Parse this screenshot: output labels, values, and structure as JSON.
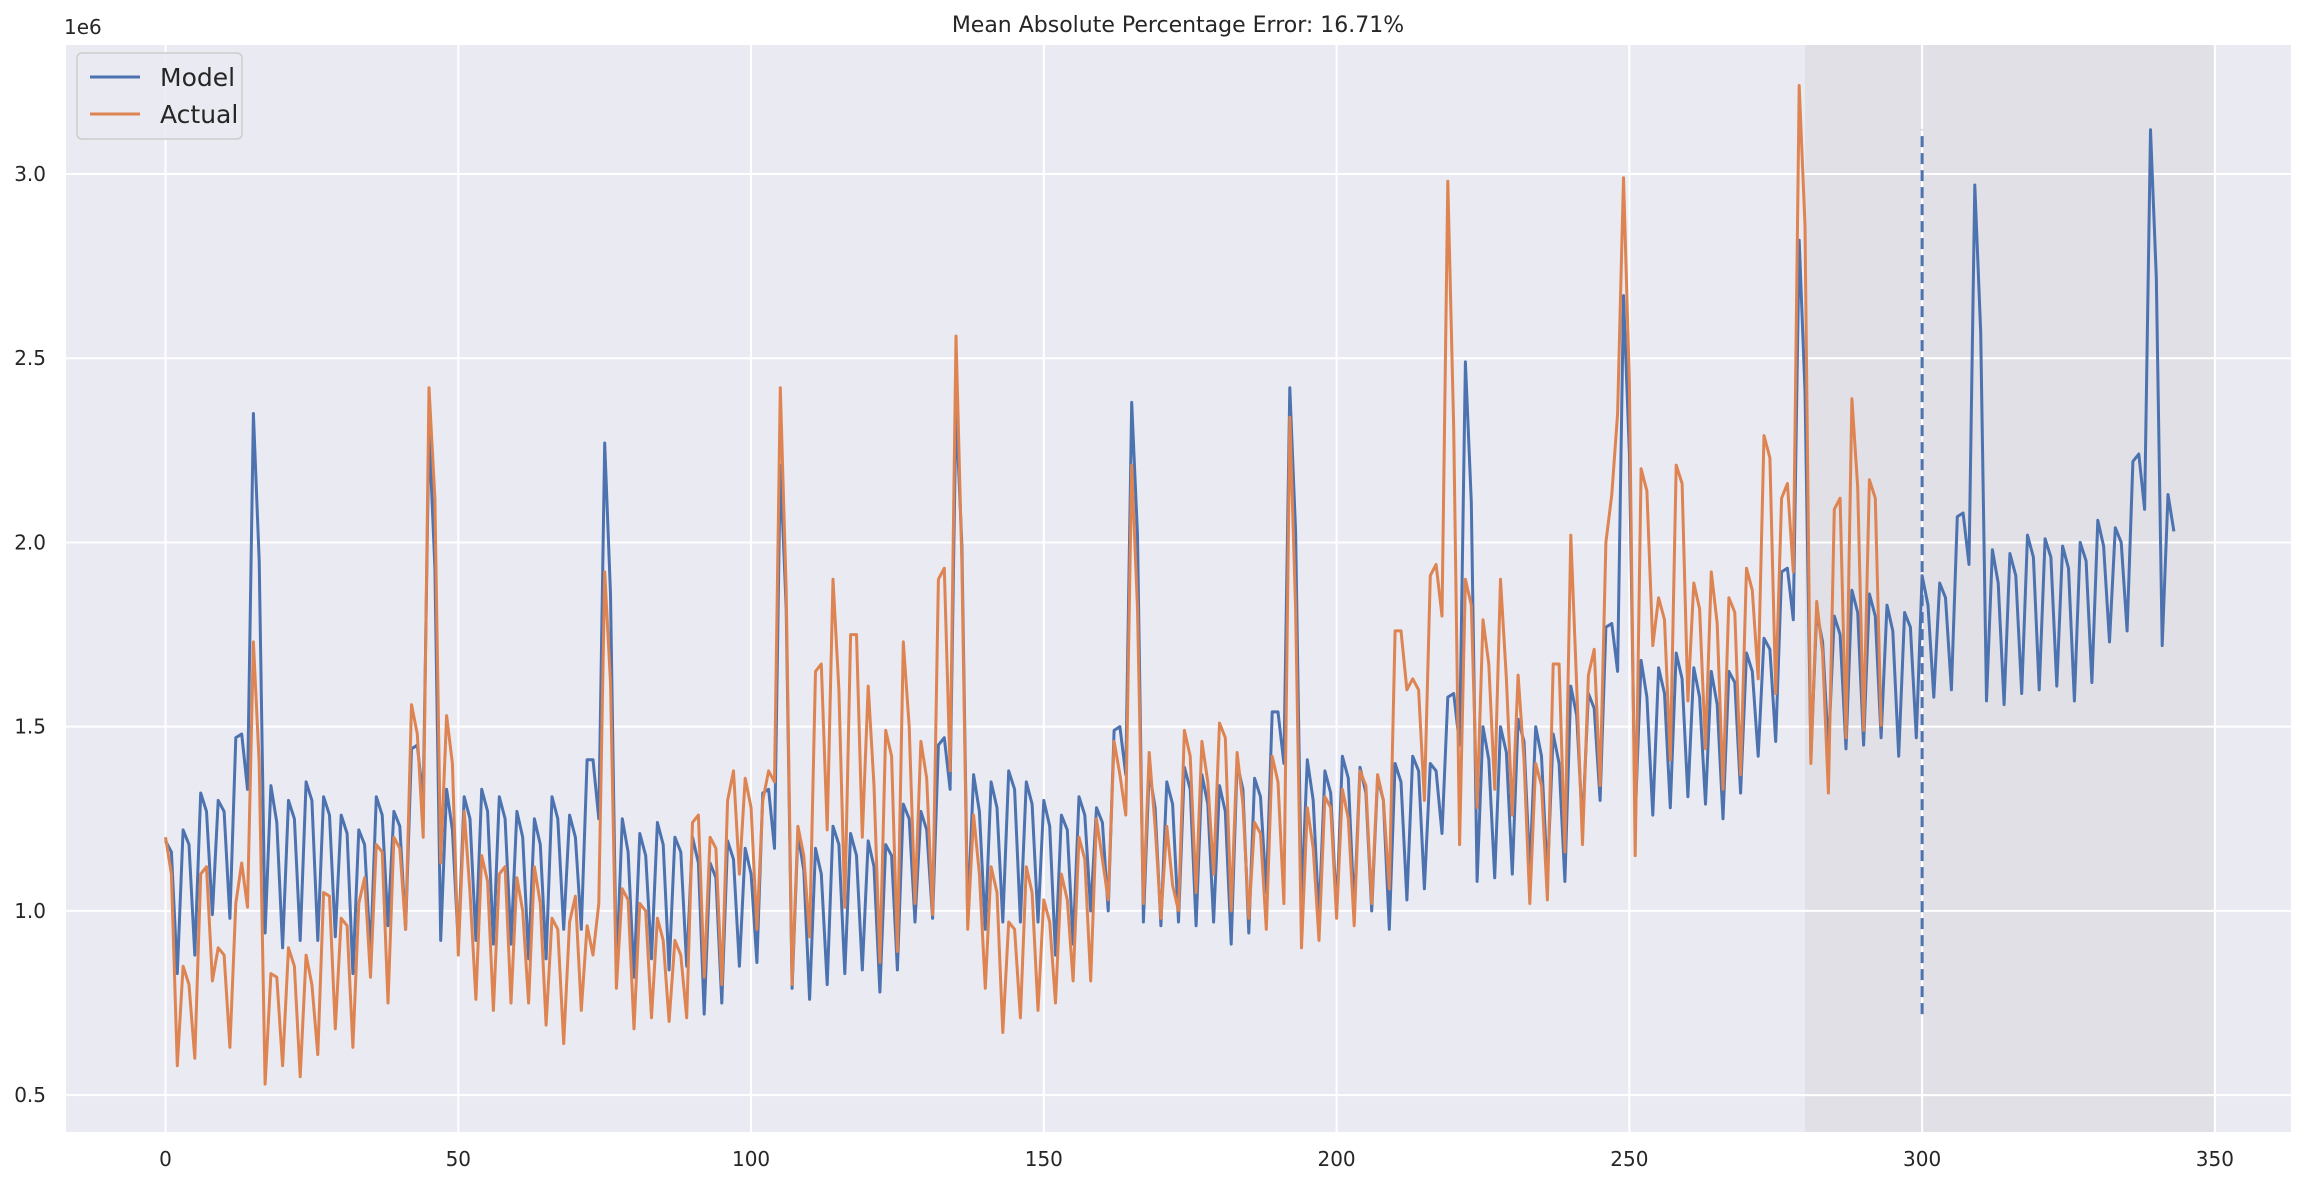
{
  "chart_data": {
    "type": "line",
    "title": "Mean Absolute Percentage Error: 16.71%",
    "y_offset_label": "1e6",
    "xlabel": "",
    "ylabel": "",
    "xlim": [
      -17,
      363
    ],
    "ylim": [
      0.4,
      3.35
    ],
    "x_ticks": [
      0,
      50,
      100,
      150,
      200,
      250,
      300,
      350
    ],
    "x_tick_labels": [
      "0",
      "50",
      "100",
      "150",
      "200",
      "250",
      "300",
      "350"
    ],
    "y_ticks": [
      0.5,
      1.0,
      1.5,
      2.0,
      2.5,
      3.0
    ],
    "y_tick_labels": [
      "0.5",
      "1.0",
      "1.5",
      "2.0",
      "2.5",
      "3.0"
    ],
    "grid": true,
    "legend_position": "top-left",
    "background": "#eaeaf2",
    "shaded_region": {
      "x": [
        280,
        350
      ],
      "color": "#e0e0e6"
    },
    "forecast_marker": {
      "x": 300,
      "y": [
        0.72,
        3.12
      ],
      "style": "dashed",
      "color": "#4c72b0"
    },
    "series": [
      {
        "name": "Model",
        "color": "#4c72b0",
        "values": [
          1.19,
          1.16,
          0.83,
          1.22,
          1.18,
          0.88,
          1.32,
          1.27,
          0.99,
          1.3,
          1.27,
          0.98,
          1.47,
          1.48,
          1.33,
          2.35,
          1.95,
          0.94,
          1.34,
          1.24,
          0.9,
          1.3,
          1.25,
          0.92,
          1.35,
          1.3,
          0.92,
          1.31,
          1.26,
          0.93,
          1.26,
          1.21,
          0.83,
          1.22,
          1.18,
          0.88,
          1.31,
          1.26,
          0.96,
          1.27,
          1.23,
          0.95,
          1.44,
          1.45,
          1.3,
          2.31,
          1.93,
          0.92,
          1.33,
          1.22,
          0.91,
          1.31,
          1.25,
          0.92,
          1.33,
          1.27,
          0.91,
          1.31,
          1.25,
          0.91,
          1.27,
          1.2,
          0.87,
          1.25,
          1.18,
          0.87,
          1.31,
          1.25,
          0.95,
          1.26,
          1.2,
          0.95,
          1.41,
          1.41,
          1.25,
          2.27,
          1.86,
          0.83,
          1.25,
          1.16,
          0.82,
          1.21,
          1.15,
          0.87,
          1.24,
          1.18,
          0.84,
          1.2,
          1.16,
          0.85,
          1.2,
          1.13,
          0.72,
          1.13,
          1.09,
          0.75,
          1.19,
          1.14,
          0.85,
          1.17,
          1.1,
          0.86,
          1.32,
          1.33,
          1.17,
          2.21,
          1.82,
          0.79,
          1.21,
          1.11,
          0.76,
          1.17,
          1.1,
          0.8,
          1.23,
          1.18,
          0.83,
          1.21,
          1.15,
          0.84,
          1.19,
          1.12,
          0.78,
          1.18,
          1.15,
          0.84,
          1.29,
          1.25,
          0.97,
          1.27,
          1.22,
          0.98,
          1.45,
          1.47,
          1.33,
          2.37,
          1.99,
          0.98,
          1.37,
          1.27,
          0.95,
          1.35,
          1.28,
          0.97,
          1.38,
          1.33,
          0.97,
          1.35,
          1.29,
          0.97,
          1.3,
          1.23,
          0.88,
          1.26,
          1.22,
          0.91,
          1.31,
          1.26,
          1.0,
          1.28,
          1.24,
          1.0,
          1.49,
          1.5,
          1.37,
          2.38,
          2.02,
          0.97,
          1.38,
          1.28,
          0.96,
          1.35,
          1.29,
          0.97,
          1.39,
          1.33,
          0.96,
          1.37,
          1.29,
          0.97,
          1.34,
          1.27,
          0.91,
          1.4,
          1.33,
          0.94,
          1.36,
          1.31,
          1.05,
          1.54,
          1.54,
          1.4,
          2.42,
          2.03,
          1.02,
          1.41,
          1.3,
          0.98,
          1.38,
          1.32,
          1.0,
          1.42,
          1.36,
          1.0,
          1.39,
          1.32,
          1.0,
          1.36,
          1.3,
          0.95,
          1.4,
          1.35,
          1.03,
          1.42,
          1.38,
          1.06,
          1.4,
          1.38,
          1.21,
          1.58,
          1.59,
          1.45,
          2.49,
          2.11,
          1.08,
          1.5,
          1.41,
          1.09,
          1.5,
          1.43,
          1.1,
          1.52,
          1.46,
          1.11,
          1.5,
          1.42,
          1.09,
          1.48,
          1.4,
          1.08,
          1.61,
          1.53,
          1.23,
          1.59,
          1.55,
          1.3,
          1.77,
          1.78,
          1.65,
          2.67,
          2.24,
          1.25,
          1.68,
          1.58,
          1.26,
          1.66,
          1.59,
          1.28,
          1.7,
          1.63,
          1.31,
          1.66,
          1.58,
          1.29,
          1.65,
          1.56,
          1.25,
          1.65,
          1.62,
          1.32,
          1.7,
          1.65,
          1.42,
          1.74,
          1.71,
          1.46,
          1.92,
          1.93,
          1.79,
          2.82,
          2.41,
          1.42,
          1.81,
          1.73,
          1.44,
          1.8,
          1.75,
          1.44,
          1.87,
          1.81,
          1.45,
          1.86,
          1.8,
          1.47,
          1.83,
          1.76,
          1.42,
          1.81,
          1.77,
          1.47,
          1.91,
          1.83,
          1.58,
          1.89,
          1.85,
          1.6,
          2.07,
          2.08,
          1.94,
          2.97,
          2.57,
          1.57,
          1.98,
          1.89,
          1.56,
          1.97,
          1.91,
          1.59,
          2.02,
          1.96,
          1.6,
          2.01,
          1.96,
          1.61,
          1.99,
          1.93,
          1.57,
          2.0,
          1.95,
          1.62,
          2.06,
          1.99,
          1.73,
          2.04,
          2.0,
          1.76,
          2.22,
          2.24,
          2.09,
          3.12,
          2.72,
          1.72,
          2.13,
          2.03
        ]
      },
      {
        "name": "Actual",
        "color": "#dd8452",
        "values": [
          1.2,
          1.1,
          0.58,
          0.85,
          0.8,
          0.6,
          1.1,
          1.12,
          0.81,
          0.9,
          0.88,
          0.63,
          1.02,
          1.13,
          1.01,
          1.73,
          1.4,
          0.53,
          0.83,
          0.82,
          0.58,
          0.9,
          0.85,
          0.55,
          0.88,
          0.8,
          0.61,
          1.05,
          1.04,
          0.68,
          0.98,
          0.96,
          0.63,
          1.02,
          1.09,
          0.82,
          1.18,
          1.16,
          0.75,
          1.2,
          1.17,
          0.95,
          1.56,
          1.48,
          1.2,
          2.42,
          2.12,
          1.13,
          1.53,
          1.4,
          0.88,
          1.27,
          1.05,
          0.76,
          1.15,
          1.08,
          0.73,
          1.1,
          1.12,
          0.75,
          1.09,
          1.0,
          0.75,
          1.12,
          1.02,
          0.69,
          0.98,
          0.95,
          0.64,
          0.97,
          1.04,
          0.73,
          0.96,
          0.88,
          1.02,
          1.92,
          1.62,
          0.79,
          1.06,
          1.03,
          0.68,
          1.02,
          1.0,
          0.71,
          0.98,
          0.92,
          0.7,
          0.92,
          0.88,
          0.71,
          1.24,
          1.26,
          0.82,
          1.2,
          1.17,
          0.8,
          1.3,
          1.38,
          1.1,
          1.36,
          1.28,
          0.95,
          1.3,
          1.38,
          1.35,
          2.42,
          1.87,
          0.8,
          1.23,
          1.15,
          0.93,
          1.65,
          1.67,
          1.22,
          1.9,
          1.6,
          1.01,
          1.75,
          1.75,
          1.2,
          1.61,
          1.34,
          0.86,
          1.49,
          1.42,
          0.89,
          1.73,
          1.5,
          1.02,
          1.46,
          1.36,
          0.99,
          1.9,
          1.93,
          1.38,
          2.56,
          1.94,
          0.95,
          1.26,
          1.1,
          0.79,
          1.12,
          1.05,
          0.67,
          0.97,
          0.95,
          0.71,
          1.12,
          1.05,
          0.73,
          1.03,
          0.97,
          0.75,
          1.1,
          1.03,
          0.81,
          1.2,
          1.14,
          0.81,
          1.25,
          1.14,
          1.03,
          1.46,
          1.37,
          1.26,
          2.21,
          1.82,
          1.02,
          1.43,
          1.23,
          0.98,
          1.23,
          1.07,
          1.0,
          1.49,
          1.42,
          1.05,
          1.46,
          1.35,
          1.1,
          1.51,
          1.47,
          1.0,
          1.43,
          1.29,
          0.98,
          1.24,
          1.21,
          0.95,
          1.42,
          1.35,
          1.02,
          2.34,
          1.82,
          0.9,
          1.28,
          1.17,
          0.92,
          1.31,
          1.28,
          0.98,
          1.33,
          1.25,
          0.96,
          1.38,
          1.34,
          1.02,
          1.37,
          1.3,
          1.06,
          1.76,
          1.76,
          1.6,
          1.63,
          1.6,
          1.3,
          1.91,
          1.94,
          1.8,
          2.98,
          2.31,
          1.18,
          1.9,
          1.83,
          1.28,
          1.79,
          1.67,
          1.33,
          1.9,
          1.63,
          1.26,
          1.64,
          1.41,
          1.02,
          1.4,
          1.34,
          1.03,
          1.67,
          1.67,
          1.16,
          2.02,
          1.61,
          1.18,
          1.64,
          1.71,
          1.34,
          2.0,
          2.13,
          2.35,
          2.99,
          2.43,
          1.15,
          2.2,
          2.14,
          1.72,
          1.85,
          1.79,
          1.41,
          2.21,
          2.16,
          1.57,
          1.89,
          1.82,
          1.44,
          1.92,
          1.78,
          1.33,
          1.85,
          1.81,
          1.37,
          1.93,
          1.87,
          1.63,
          2.29,
          2.23,
          1.59,
          2.12,
          2.16,
          1.92,
          3.24,
          2.86,
          1.4,
          1.84,
          1.7,
          1.32,
          2.09,
          2.12,
          1.47,
          2.39,
          2.15,
          1.49,
          2.17,
          2.12,
          1.5
        ]
      }
    ]
  }
}
